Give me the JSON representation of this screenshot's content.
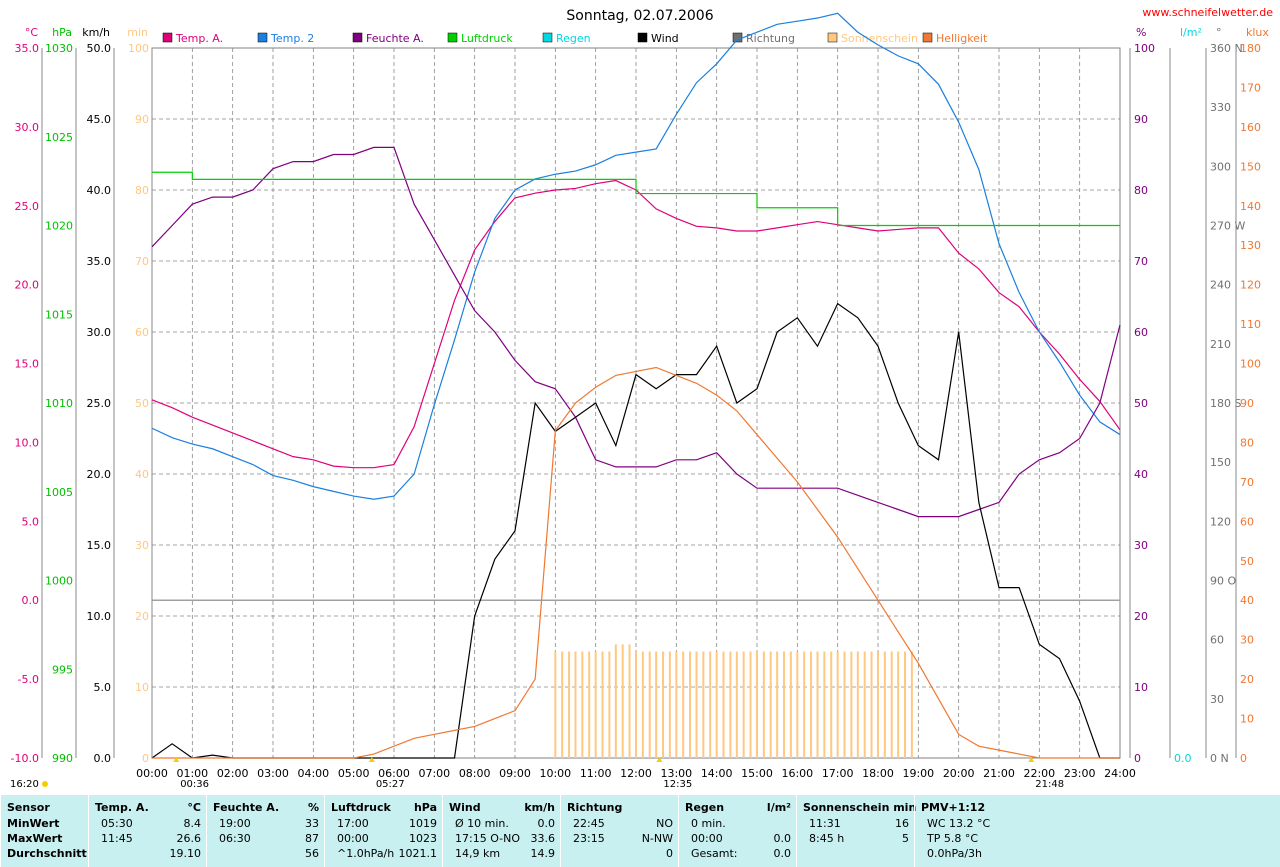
{
  "site": "www.schneifelwetter.de",
  "title": "Sonntag, 02.07.2006",
  "colors": {
    "temp_a": "#e0007a",
    "temp2": "#1a7fe0",
    "feuchte": "#800080",
    "luftdruck": "#00d000",
    "regen": "#00d8e0",
    "wind": "#000000",
    "richtung": "#707070",
    "sonne": "#ffc880",
    "helligkeit": "#f07830",
    "grid": "#808080"
  },
  "legend": [
    {
      "label": "Temp. A.",
      "color": "#e0007a"
    },
    {
      "label": "Temp. 2",
      "color": "#1a7fe0"
    },
    {
      "label": "Feuchte A.",
      "color": "#800080"
    },
    {
      "label": "Luftdruck",
      "color": "#00d000"
    },
    {
      "label": "Regen",
      "color": "#00d8e0"
    },
    {
      "label": "Wind",
      "color": "#000000"
    },
    {
      "label": "Richtung",
      "color": "#707070"
    },
    {
      "label": "Sonnenschein",
      "color": "#ffc880"
    },
    {
      "label": "Helligkeit",
      "color": "#f07830"
    }
  ],
  "chart_data": {
    "type": "line",
    "x_hours": [
      0,
      0.5,
      1,
      1.5,
      2,
      2.5,
      3,
      3.5,
      4,
      4.5,
      5,
      5.5,
      6,
      6.5,
      7,
      7.5,
      8,
      8.5,
      9,
      9.5,
      10,
      10.5,
      11,
      11.5,
      12,
      12.5,
      13,
      13.5,
      14,
      14.5,
      15,
      15.5,
      16,
      16.5,
      17,
      17.5,
      18,
      18.5,
      19,
      19.5,
      20,
      20.5,
      21,
      21.5,
      22,
      22.5,
      23,
      23.5,
      24
    ],
    "x_tick_labels": [
      "00:00",
      "01:00",
      "02:00",
      "03:00",
      "04:00",
      "05:00",
      "06:00",
      "07:00",
      "08:00",
      "09:00",
      "10:00",
      "11:00",
      "12:00",
      "13:00",
      "14:00",
      "15:00",
      "16:00",
      "17:00",
      "18:00",
      "19:00",
      "20:00",
      "21:00",
      "22:00",
      "23:00",
      "24:00"
    ],
    "axes_left": [
      {
        "unit": "°C",
        "color": "#e0007a",
        "range": [
          -10,
          35
        ],
        "ticks": [
          "35.0",
          "30.0",
          "25.0",
          "20.0",
          "15.0",
          "10.0",
          "5.0",
          "0.0",
          "-5.0",
          "-10.0"
        ]
      },
      {
        "unit": "hPa",
        "color": "#00c000",
        "range": [
          990,
          1030
        ],
        "ticks": [
          "1030",
          "1025",
          "1020",
          "1015",
          "1010",
          "1005",
          "1000",
          "995",
          "990"
        ]
      },
      {
        "unit": "km/h",
        "color": "#000000",
        "range": [
          0,
          50
        ],
        "ticks": [
          "50.0",
          "45.0",
          "40.0",
          "35.0",
          "30.0",
          "25.0",
          "20.0",
          "15.0",
          "10.0",
          "5.0",
          "0.0"
        ]
      },
      {
        "unit": "min",
        "color": "#ffc880",
        "range": [
          0,
          100
        ],
        "ticks": [
          "100",
          "90",
          "80",
          "70",
          "60",
          "50",
          "40",
          "30",
          "20",
          "10",
          "0"
        ]
      }
    ],
    "axes_right": [
      {
        "unit": "%",
        "color": "#800080",
        "range": [
          0,
          100
        ],
        "ticks": [
          "100",
          "90",
          "80",
          "70",
          "60",
          "50",
          "40",
          "30",
          "20",
          "10",
          "0"
        ]
      },
      {
        "unit": "l/m²",
        "color": "#00d8e0",
        "range": [
          0,
          1
        ],
        "ticks": [
          "0.0"
        ]
      },
      {
        "unit": "°",
        "color": "#707070",
        "range": [
          0,
          360
        ],
        "ticks": [
          "360 N",
          "330",
          "300",
          "270 W",
          "240",
          "210",
          "180 S",
          "150",
          "120",
          "90 O",
          "60",
          "30",
          "0 N"
        ]
      },
      {
        "unit": "klux",
        "color": "#f07830",
        "range": [
          0,
          180
        ],
        "ticks": [
          "180",
          "170",
          "160",
          "150",
          "140",
          "130",
          "120",
          "110",
          "100",
          "90",
          "80",
          "70",
          "60",
          "50",
          "40",
          "30",
          "20",
          "10",
          "0"
        ]
      }
    ],
    "series": [
      {
        "name": "Temp. A.",
        "unit": "°C",
        "values": [
          12.7,
          12.2,
          11.6,
          11.1,
          10.6,
          10.1,
          9.6,
          9.1,
          8.9,
          8.5,
          8.4,
          8.4,
          8.6,
          11.0,
          15.0,
          19.0,
          22.2,
          24.0,
          25.5,
          25.8,
          26.0,
          26.1,
          26.4,
          26.6,
          26.0,
          24.8,
          24.2,
          23.7,
          23.6,
          23.4,
          23.4,
          23.6,
          23.8,
          24.0,
          23.8,
          23.6,
          23.4,
          23.5,
          23.6,
          23.6,
          22.0,
          21.0,
          19.5,
          18.6,
          17.0,
          15.6,
          14.0,
          12.6,
          10.8
        ]
      },
      {
        "name": "Temp. 2",
        "unit": "°C",
        "values": [
          10.9,
          10.3,
          9.9,
          9.6,
          9.1,
          8.6,
          7.9,
          7.6,
          7.2,
          6.9,
          6.6,
          6.4,
          6.6,
          8.0,
          12.4,
          16.5,
          20.8,
          24.2,
          26.0,
          26.7,
          27.0,
          27.2,
          27.6,
          28.2,
          28.4,
          28.6,
          30.8,
          32.8,
          34.0,
          35.5,
          36.0,
          36.5,
          36.7,
          36.9,
          37.2,
          36.0,
          35.2,
          34.5,
          34.0,
          32.7,
          30.3,
          27.3,
          22.6,
          19.5,
          17.0,
          15.1,
          13.0,
          11.3,
          10.5
        ]
      },
      {
        "name": "Feuchte A.",
        "unit": "%",
        "values": [
          72,
          75,
          78,
          79,
          79,
          80,
          83,
          84,
          84,
          85,
          85,
          86,
          86,
          78,
          73,
          68,
          63,
          60,
          56,
          53,
          52,
          48,
          42,
          41,
          41,
          41,
          42,
          42,
          43,
          40,
          38,
          38,
          38,
          38,
          38,
          37,
          36,
          35,
          34,
          34,
          34,
          35,
          36,
          40,
          42,
          43,
          45,
          50,
          61
        ]
      },
      {
        "name": "Luftdruck",
        "unit": "hPa",
        "values": [
          1023,
          1023,
          1022.6,
          1022.6,
          1022.6,
          1022.6,
          1022.6,
          1022.6,
          1022.6,
          1022.6,
          1022.6,
          1022.6,
          1022.6,
          1022.6,
          1022.6,
          1022.6,
          1022.6,
          1022.6,
          1022.6,
          1022.6,
          1022.6,
          1022.6,
          1022.6,
          1022.6,
          1021.8,
          1021.8,
          1021.8,
          1021.8,
          1021.8,
          1021.8,
          1021,
          1021,
          1021,
          1021,
          1020,
          1020,
          1020,
          1020,
          1020,
          1020,
          1020,
          1020,
          1020,
          1020,
          1020,
          1020,
          1020,
          1020,
          1020
        ]
      },
      {
        "name": "Wind",
        "unit": "km/h",
        "values": [
          0,
          1,
          0,
          0.2,
          0,
          0,
          0,
          0,
          0,
          0,
          0,
          0,
          0,
          0,
          0,
          0,
          10,
          14,
          16,
          25,
          23,
          24,
          25,
          22,
          27,
          26,
          27,
          27,
          29,
          25,
          26,
          30,
          31,
          29,
          32,
          31,
          29,
          25,
          22,
          21,
          30,
          18,
          12,
          12,
          8,
          7,
          4,
          0,
          0
        ]
      },
      {
        "name": "Helligkeit",
        "unit": "klux",
        "values": [
          0,
          0,
          0,
          0,
          0,
          0,
          0,
          0,
          0,
          0,
          0,
          1,
          3,
          5,
          6,
          7,
          8,
          10,
          12,
          20,
          83,
          90,
          94,
          97,
          98,
          99,
          97,
          95,
          92,
          88,
          82,
          76,
          70,
          63,
          56,
          48,
          40,
          32,
          24,
          15,
          6,
          3,
          2,
          1,
          0,
          0,
          0,
          0,
          0
        ]
      },
      {
        "name": "Sonnenschein",
        "unit": "min",
        "values": [
          0,
          0,
          0,
          0,
          0,
          0,
          0,
          0,
          0,
          0,
          0,
          0,
          0,
          0,
          0,
          0,
          0,
          0,
          0,
          0,
          15,
          15,
          15,
          16,
          15,
          15,
          15,
          15,
          15,
          15,
          15,
          15,
          15,
          15,
          15,
          15,
          15,
          15,
          0,
          0,
          0,
          0,
          0,
          0,
          0,
          0,
          0,
          0,
          0
        ]
      }
    ],
    "markers": {
      "sunrise": "05:27",
      "sunset": "21:48",
      "moonrise": "16:20",
      "moonset": "00:36",
      "solar_noon": "12:35"
    }
  },
  "footer": {
    "cols": [
      {
        "title": "Sensor",
        "unit": "",
        "rows": [
          [
            "MinWert",
            ""
          ],
          [
            "MaxWert",
            ""
          ],
          [
            "Durchschnitt",
            ""
          ]
        ]
      },
      {
        "title": "Temp. A.",
        "unit": "°C",
        "rows": [
          [
            "05:30",
            "8.4"
          ],
          [
            "11:45",
            "26.6"
          ],
          [
            "",
            "19.10"
          ]
        ]
      },
      {
        "title": "Feuchte A.",
        "unit": "%",
        "rows": [
          [
            "19:00",
            "33"
          ],
          [
            "06:30",
            "87"
          ],
          [
            "",
            "56"
          ]
        ]
      },
      {
        "title": "Luftdruck",
        "unit": "hPa",
        "rows": [
          [
            "17:00",
            "1019"
          ],
          [
            "00:00",
            "1023"
          ],
          [
            "^1.0hPa/h",
            "1021.1"
          ]
        ]
      },
      {
        "title": "Wind",
        "unit": "km/h",
        "rows": [
          [
            "Ø 10 min.",
            "0.0"
          ],
          [
            "17:15  O-NO",
            "33.6"
          ],
          [
            "14,9 km",
            "14.9"
          ]
        ]
      },
      {
        "title": "Richtung",
        "unit": "",
        "rows": [
          [
            "22:45",
            "NO"
          ],
          [
            "23:15",
            "N-NW"
          ],
          [
            "",
            "0"
          ]
        ]
      },
      {
        "title": "Regen",
        "unit": "l/m²",
        "rows": [
          [
            "0 min.",
            ""
          ],
          [
            "00:00",
            "0.0"
          ],
          [
            "Gesamt:",
            "0.0"
          ]
        ]
      },
      {
        "title": "Sonnenschein min",
        "unit": "",
        "rows": [
          [
            "11:31",
            "16"
          ],
          [
            "8:45 h",
            "5"
          ],
          [
            "",
            ""
          ]
        ]
      },
      {
        "title": "PMV+1:12",
        "unit": "",
        "rows": [
          [
            "WC 13.2 °C",
            ""
          ],
          [
            "TP 5.8 °C",
            ""
          ],
          [
            "0.0hPa/3h",
            ""
          ]
        ]
      }
    ]
  }
}
